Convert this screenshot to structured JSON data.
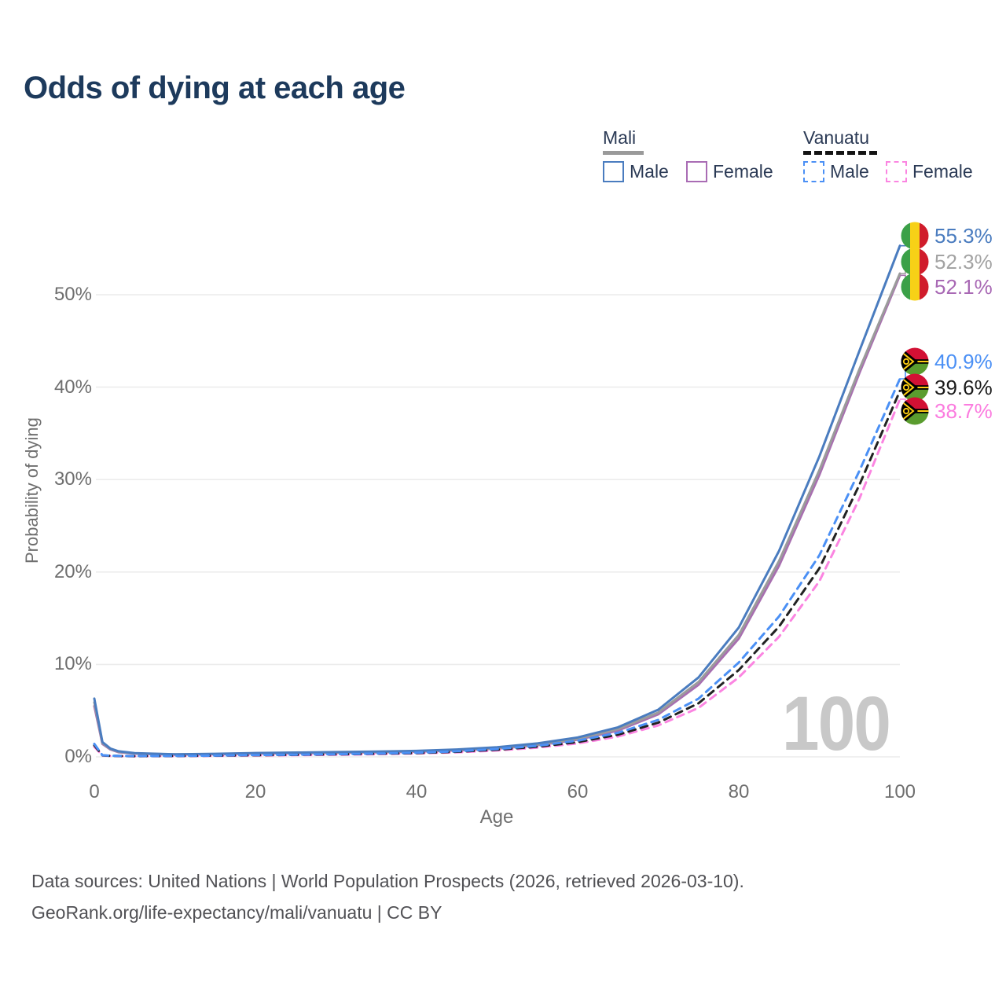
{
  "title": "Odds of dying at each age",
  "legend": {
    "mali": {
      "label": "Mali",
      "male": "Male",
      "female": "Female"
    },
    "vanuatu": {
      "label": "Vanuatu",
      "male": "Male",
      "female": "Female"
    }
  },
  "axes": {
    "y": {
      "title": "Probability of dying",
      "ticks": [
        {
          "label": "0%"
        },
        {
          "label": "10%"
        },
        {
          "label": "20%"
        },
        {
          "label": "30%"
        },
        {
          "label": "40%"
        },
        {
          "label": "50%"
        }
      ]
    },
    "x": {
      "title": "Age",
      "ticks": [
        {
          "label": "0"
        },
        {
          "label": "20"
        },
        {
          "label": "40"
        },
        {
          "label": "60"
        },
        {
          "label": "80"
        },
        {
          "label": "100"
        }
      ]
    }
  },
  "watermark": "100",
  "end_labels": [
    {
      "value": "55.3%",
      "flag": "mali",
      "color": "#4a7cbf"
    },
    {
      "value": "52.3%",
      "flag": "mali",
      "color": "#a3a3a3"
    },
    {
      "value": "52.1%",
      "flag": "mali",
      "color": "#a868b4"
    },
    {
      "value": "40.9%",
      "flag": "vanuatu",
      "color": "#4b90f5"
    },
    {
      "value": "39.6%",
      "flag": "vanuatu",
      "color": "#1b1b1b"
    },
    {
      "value": "38.7%",
      "flag": "vanuatu",
      "color": "#fb7cdf"
    }
  ],
  "footer": {
    "line1": "Data sources: United Nations | World Population Prospects (2026, retrieved 2026-03-10).",
    "line2": "GeoRank.org/life-expectancy/mali/vanuatu | CC BY"
  },
  "colors": {
    "title": "#1d3a5c",
    "grid": "#ececec",
    "axis_text": "#6e6e6e",
    "mali_male": "#4a7cbf",
    "mali_combined": "#9b9b9b",
    "mali_female": "#a86fb0",
    "vanuatu_male": "#4b90f5",
    "vanuatu_combined": "#222222",
    "vanuatu_female": "#fb85e1",
    "watermark": "#c8c8c8"
  },
  "chart_data": {
    "type": "line",
    "title": "Odds of dying at each age",
    "xlabel": "Age",
    "ylabel": "Probability of dying",
    "xlim": [
      0,
      100
    ],
    "ylim_percent": [
      0,
      57
    ],
    "x_ticks": [
      0,
      20,
      40,
      60,
      80,
      100
    ],
    "y_ticks_percent": [
      0,
      10,
      20,
      30,
      40,
      50
    ],
    "grid": true,
    "legend_position": "top-right",
    "ages": [
      0,
      1,
      2,
      3,
      5,
      10,
      15,
      20,
      25,
      30,
      35,
      40,
      45,
      50,
      55,
      60,
      65,
      70,
      75,
      80,
      85,
      90,
      95,
      100
    ],
    "series": [
      {
        "name": "Mali Female",
        "style": "solid",
        "color": "#a86fb0",
        "end_row": 2,
        "end_value_percent": 52.1,
        "values_percent": [
          5.5,
          1.4,
          0.8,
          0.5,
          0.35,
          0.24,
          0.28,
          0.36,
          0.4,
          0.44,
          0.49,
          0.56,
          0.69,
          0.9,
          1.25,
          1.85,
          2.85,
          4.6,
          7.8,
          12.8,
          20.7,
          30.5,
          41.6,
          52.1
        ]
      },
      {
        "name": "Mali Combined",
        "style": "solid",
        "color": "#9b9b9b",
        "end_row": 1,
        "end_value_percent": 52.3,
        "values_percent": [
          5.9,
          1.5,
          0.85,
          0.55,
          0.37,
          0.26,
          0.3,
          0.39,
          0.44,
          0.48,
          0.53,
          0.6,
          0.74,
          0.96,
          1.33,
          1.95,
          3.0,
          4.8,
          8.1,
          13.2,
          21.2,
          31.0,
          42.0,
          52.3
        ]
      },
      {
        "name": "Mali Male",
        "style": "solid",
        "color": "#4a7cbf",
        "end_row": 0,
        "end_value_percent": 55.3,
        "values_percent": [
          6.3,
          1.6,
          0.9,
          0.6,
          0.4,
          0.28,
          0.33,
          0.42,
          0.47,
          0.52,
          0.57,
          0.65,
          0.8,
          1.05,
          1.45,
          2.1,
          3.2,
          5.1,
          8.6,
          14.0,
          22.3,
          32.5,
          44.0,
          55.3
        ]
      },
      {
        "name": "Vanuatu Female",
        "style": "dashed",
        "color": "#fb85e1",
        "end_row": 5,
        "end_value_percent": 38.7,
        "values_percent": [
          1.1,
          0.14,
          0.1,
          0.08,
          0.07,
          0.08,
          0.11,
          0.15,
          0.19,
          0.23,
          0.29,
          0.37,
          0.49,
          0.69,
          1.0,
          1.45,
          2.2,
          3.4,
          5.3,
          8.6,
          13.0,
          19.0,
          28.0,
          38.7
        ]
      },
      {
        "name": "Vanuatu Combined",
        "style": "dashed",
        "color": "#222222",
        "end_row": 4,
        "end_value_percent": 39.6,
        "values_percent": [
          1.25,
          0.16,
          0.11,
          0.09,
          0.08,
          0.09,
          0.13,
          0.18,
          0.22,
          0.27,
          0.33,
          0.41,
          0.55,
          0.77,
          1.1,
          1.6,
          2.4,
          3.7,
          5.8,
          9.4,
          14.1,
          20.4,
          29.5,
          39.6
        ]
      },
      {
        "name": "Vanuatu Male",
        "style": "dashed",
        "color": "#4b90f5",
        "end_row": 3,
        "end_value_percent": 40.9,
        "values_percent": [
          1.4,
          0.18,
          0.12,
          0.1,
          0.09,
          0.1,
          0.14,
          0.2,
          0.24,
          0.29,
          0.36,
          0.45,
          0.6,
          0.85,
          1.2,
          1.75,
          2.6,
          4.0,
          6.3,
          10.2,
          15.2,
          21.8,
          31.0,
          40.9
        ]
      }
    ]
  }
}
